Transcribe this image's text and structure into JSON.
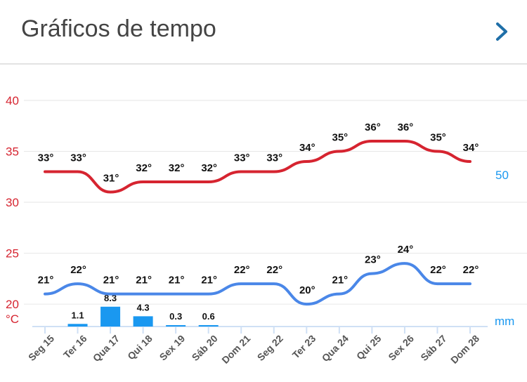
{
  "header": {
    "title": "Gráficos de tempo"
  },
  "colors": {
    "max": "#d62430",
    "min": "#4a87e8",
    "precip": "#1a98f0",
    "axis_temp": "#d62430",
    "axis_mm": "#1a98f0"
  },
  "chart_data": {
    "type": "line",
    "categories": [
      "Seg 15",
      "Ter 16",
      "Qua 17",
      "Qui 18",
      "Sex 19",
      "Sáb 20",
      "Dom 21",
      "Seg 22",
      "Ter 23",
      "Qua 24",
      "Qui 25",
      "Sex 26",
      "Sáb 27",
      "Dom 28"
    ],
    "temp_unit": "°C",
    "precip_unit": "mm",
    "y_ticks": [
      20,
      25,
      30,
      35,
      40
    ],
    "y_ticks_labels": [
      "20",
      "25",
      "30",
      "35",
      "40"
    ],
    "ylim": [
      17.8,
      40
    ],
    "right_tick_label": "50",
    "series": [
      {
        "name": "max",
        "values": [
          33,
          33,
          31,
          32,
          32,
          32,
          33,
          33,
          34,
          35,
          36,
          36,
          35,
          34
        ],
        "labels": [
          "33°",
          "33°",
          "31°",
          "32°",
          "32°",
          "32°",
          "33°",
          "33°",
          "34°",
          "35°",
          "36°",
          "36°",
          "35°",
          "34°"
        ]
      },
      {
        "name": "min",
        "values": [
          21,
          22,
          21,
          21,
          21,
          21,
          22,
          22,
          20,
          21,
          23,
          24,
          22,
          22
        ],
        "labels": [
          "21°",
          "22°",
          "21°",
          "21°",
          "21°",
          "21°",
          "22°",
          "22°",
          "20°",
          "21°",
          "23°",
          "24°",
          "22°",
          "22°"
        ]
      }
    ],
    "precip": {
      "values": [
        0,
        1.1,
        8.3,
        4.3,
        0.3,
        0.6,
        0,
        0,
        0,
        0,
        0,
        0,
        0,
        0
      ],
      "labels": [
        "",
        "1.1",
        "8.3",
        "4.3",
        "0.3",
        "0.6",
        "",
        "",
        "",
        "",
        "",
        "",
        "",
        ""
      ]
    }
  }
}
